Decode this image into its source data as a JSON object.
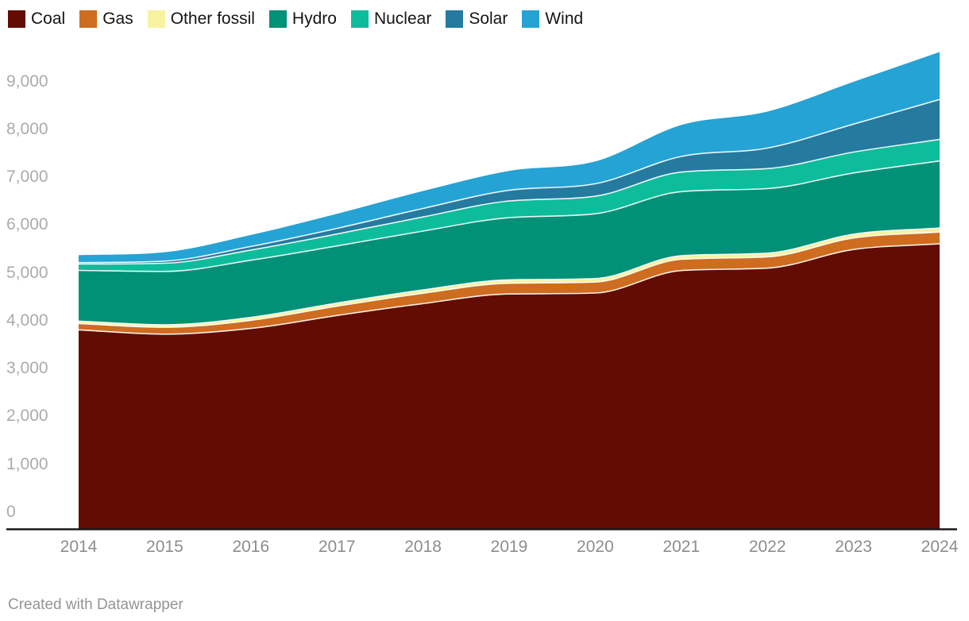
{
  "footer": {
    "credit": "Created with Datawrapper"
  },
  "legend": {
    "position": "top-left",
    "items": [
      {
        "label": "Coal",
        "color": "#630c04"
      },
      {
        "label": "Gas",
        "color": "#ce6c20"
      },
      {
        "label": "Other fossil",
        "color": "#f7f2a0"
      },
      {
        "label": "Hydro",
        "color": "#019078"
      },
      {
        "label": "Nuclear",
        "color": "#0dbc9a"
      },
      {
        "label": "Solar",
        "color": "#257a9f"
      },
      {
        "label": "Wind",
        "color": "#25a3d5"
      }
    ]
  },
  "chart_data": {
    "type": "area",
    "stacked": true,
    "smoothing": "monotone",
    "grid": false,
    "legend_position": "top",
    "categories": [
      "2014",
      "2015",
      "2016",
      "2017",
      "2018",
      "2019",
      "2020",
      "2021",
      "2022",
      "2023",
      "2024"
    ],
    "series": [
      {
        "name": "Coal",
        "color": "#630c04",
        "values": [
          4150,
          4060,
          4180,
          4450,
          4700,
          4900,
          4920,
          5390,
          5440,
          5830,
          5950
        ]
      },
      {
        "name": "Gas",
        "color": "#ce6c20",
        "values": [
          133,
          145,
          170,
          195,
          215,
          225,
          230,
          235,
          235,
          240,
          245
        ]
      },
      {
        "name": "Other fossil",
        "color": "#f7f2a0",
        "values": [
          50,
          52,
          60,
          65,
          70,
          70,
          72,
          75,
          78,
          80,
          85
        ]
      },
      {
        "name": "Hydro",
        "color": "#019078",
        "values": [
          1060,
          1115,
          1195,
          1195,
          1230,
          1300,
          1355,
          1340,
          1350,
          1280,
          1400
        ]
      },
      {
        "name": "Nuclear",
        "color": "#0dbc9a",
        "values": [
          133,
          170,
          213,
          248,
          295,
          348,
          366,
          408,
          418,
          435,
          450
        ]
      },
      {
        "name": "Solar",
        "color": "#257a9f",
        "values": [
          29,
          45,
          75,
          118,
          177,
          224,
          261,
          327,
          428,
          584,
          835
        ]
      },
      {
        "name": "Wind",
        "color": "#25a3d5",
        "values": [
          156,
          186,
          240,
          305,
          366,
          406,
          466,
          656,
          763,
          886,
          992
        ]
      }
    ],
    "totals": [
      5711,
      5773,
      6133,
      6576,
      7053,
      7473,
      7670,
      8431,
      8712,
      9335,
      9957
    ],
    "ylim": [
      0,
      10000
    ],
    "y_ticks": [
      {
        "value": 0,
        "label": "0"
      },
      {
        "value": 1000,
        "label": "1,000"
      },
      {
        "value": 2000,
        "label": "2,000"
      },
      {
        "value": 3000,
        "label": "3,000"
      },
      {
        "value": 4000,
        "label": "4,000"
      },
      {
        "value": 5000,
        "label": "5,000"
      },
      {
        "value": 6000,
        "label": "6,000"
      },
      {
        "value": 7000,
        "label": "7,000"
      },
      {
        "value": 8000,
        "label": "8,000"
      },
      {
        "value": 9000,
        "label": "9,000"
      }
    ]
  }
}
